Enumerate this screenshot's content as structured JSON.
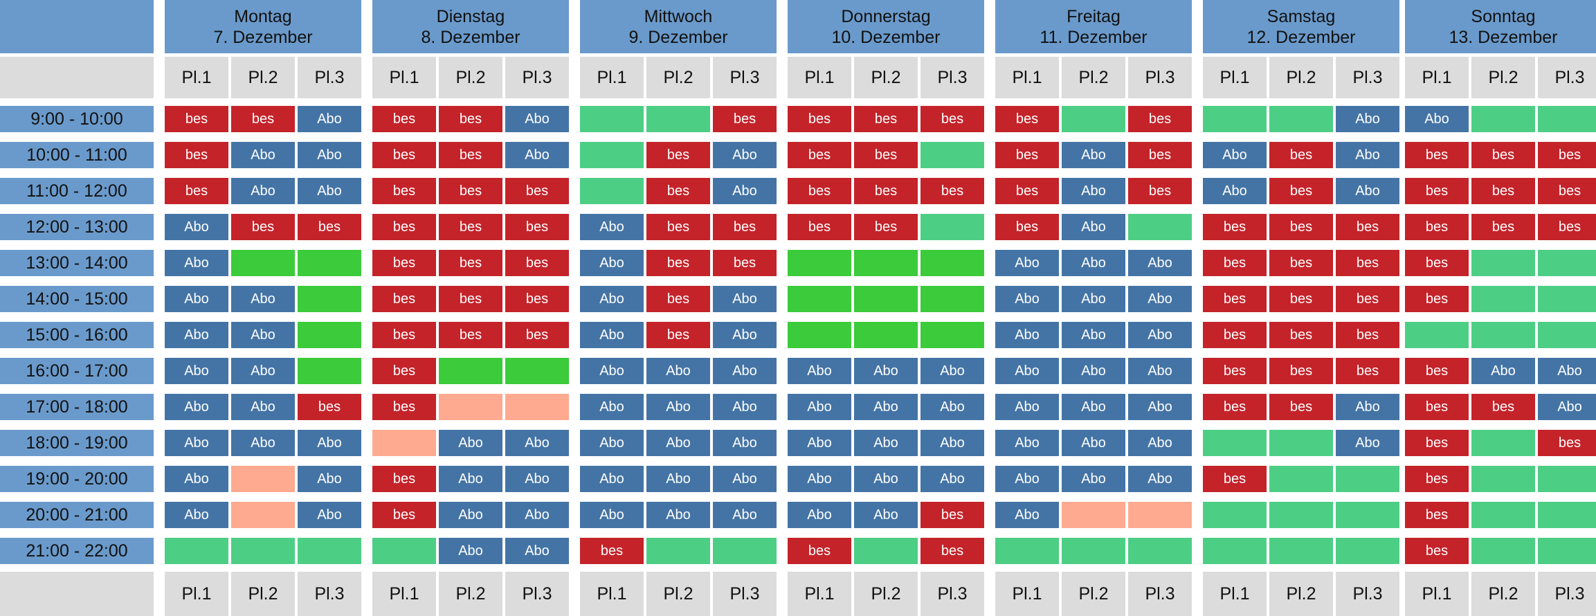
{
  "courts": [
    "Pl.1",
    "Pl.2",
    "Pl.3"
  ],
  "days": [
    {
      "name": "Montag",
      "date": "7. Dezember"
    },
    {
      "name": "Dienstag",
      "date": "8. Dezember"
    },
    {
      "name": "Mittwoch",
      "date": "9. Dezember"
    },
    {
      "name": "Donnerstag",
      "date": "10. Dezember"
    },
    {
      "name": "Freitag",
      "date": "11. Dezember"
    },
    {
      "name": "Samstag",
      "date": "12. Dezember"
    },
    {
      "name": "Sonntag",
      "date": "13. Dezember"
    }
  ],
  "times": [
    "9:00 - 10:00",
    "10:00 - 11:00",
    "11:00 - 12:00",
    "12:00 - 13:00",
    "13:00 - 14:00",
    "14:00 - 15:00",
    "15:00 - 16:00",
    "16:00 - 17:00",
    "17:00 - 18:00",
    "18:00 - 19:00",
    "19:00 - 20:00",
    "20:00 - 21:00",
    "21:00 - 22:00"
  ],
  "status_labels": {
    "bes": "bes",
    "abo": "Abo",
    "frei": "",
    "frei2": "",
    "res": ""
  },
  "colors": {
    "bes": "#c4232a",
    "abo": "#4474a5",
    "frei": "#4dce85",
    "frei2": "#3bcb3b",
    "res": "#fdaa90",
    "header": "#6a9acb",
    "court_header": "#dcdcdc"
  },
  "slots": [
    [
      [
        "bes",
        "bes",
        "abo"
      ],
      [
        "bes",
        "bes",
        "abo"
      ],
      [
        "frei",
        "frei",
        "bes"
      ],
      [
        "bes",
        "bes",
        "bes"
      ],
      [
        "bes",
        "frei",
        "bes"
      ],
      [
        "frei",
        "frei",
        "abo"
      ],
      [
        "abo",
        "frei",
        "frei"
      ]
    ],
    [
      [
        "bes",
        "abo",
        "abo"
      ],
      [
        "bes",
        "bes",
        "abo"
      ],
      [
        "frei",
        "bes",
        "abo"
      ],
      [
        "bes",
        "bes",
        "frei"
      ],
      [
        "bes",
        "abo",
        "bes"
      ],
      [
        "abo",
        "bes",
        "abo"
      ],
      [
        "bes",
        "bes",
        "bes"
      ]
    ],
    [
      [
        "bes",
        "abo",
        "abo"
      ],
      [
        "bes",
        "bes",
        "bes"
      ],
      [
        "frei",
        "bes",
        "abo"
      ],
      [
        "bes",
        "bes",
        "bes"
      ],
      [
        "bes",
        "abo",
        "bes"
      ],
      [
        "abo",
        "bes",
        "abo"
      ],
      [
        "bes",
        "bes",
        "bes"
      ]
    ],
    [
      [
        "abo",
        "bes",
        "bes"
      ],
      [
        "bes",
        "bes",
        "bes"
      ],
      [
        "abo",
        "bes",
        "bes"
      ],
      [
        "bes",
        "bes",
        "frei"
      ],
      [
        "bes",
        "abo",
        "frei"
      ],
      [
        "bes",
        "bes",
        "bes"
      ],
      [
        "bes",
        "bes",
        "bes"
      ]
    ],
    [
      [
        "abo",
        "frei2",
        "frei2"
      ],
      [
        "bes",
        "bes",
        "bes"
      ],
      [
        "abo",
        "bes",
        "bes"
      ],
      [
        "frei2",
        "frei2",
        "frei2"
      ],
      [
        "abo",
        "abo",
        "abo"
      ],
      [
        "bes",
        "bes",
        "bes"
      ],
      [
        "bes",
        "frei",
        "frei"
      ]
    ],
    [
      [
        "abo",
        "abo",
        "frei2"
      ],
      [
        "bes",
        "bes",
        "bes"
      ],
      [
        "abo",
        "bes",
        "abo"
      ],
      [
        "frei2",
        "frei2",
        "frei2"
      ],
      [
        "abo",
        "abo",
        "abo"
      ],
      [
        "bes",
        "bes",
        "bes"
      ],
      [
        "bes",
        "frei",
        "frei"
      ]
    ],
    [
      [
        "abo",
        "abo",
        "frei2"
      ],
      [
        "bes",
        "bes",
        "bes"
      ],
      [
        "abo",
        "bes",
        "abo"
      ],
      [
        "frei2",
        "frei2",
        "frei2"
      ],
      [
        "abo",
        "abo",
        "abo"
      ],
      [
        "bes",
        "bes",
        "bes"
      ],
      [
        "frei",
        "frei",
        "frei"
      ]
    ],
    [
      [
        "abo",
        "abo",
        "frei2"
      ],
      [
        "bes",
        "frei2",
        "frei2"
      ],
      [
        "abo",
        "abo",
        "abo"
      ],
      [
        "abo",
        "abo",
        "abo"
      ],
      [
        "abo",
        "abo",
        "abo"
      ],
      [
        "bes",
        "bes",
        "bes"
      ],
      [
        "bes",
        "abo",
        "abo"
      ]
    ],
    [
      [
        "abo",
        "abo",
        "bes"
      ],
      [
        "bes",
        "res",
        "res"
      ],
      [
        "abo",
        "abo",
        "abo"
      ],
      [
        "abo",
        "abo",
        "abo"
      ],
      [
        "abo",
        "abo",
        "abo"
      ],
      [
        "bes",
        "bes",
        "abo"
      ],
      [
        "bes",
        "bes",
        "abo"
      ]
    ],
    [
      [
        "abo",
        "abo",
        "abo"
      ],
      [
        "res",
        "abo",
        "abo"
      ],
      [
        "abo",
        "abo",
        "abo"
      ],
      [
        "abo",
        "abo",
        "abo"
      ],
      [
        "abo",
        "abo",
        "abo"
      ],
      [
        "frei",
        "frei",
        "abo"
      ],
      [
        "bes",
        "frei",
        "bes"
      ]
    ],
    [
      [
        "abo",
        "res",
        "abo"
      ],
      [
        "bes",
        "abo",
        "abo"
      ],
      [
        "abo",
        "abo",
        "abo"
      ],
      [
        "abo",
        "abo",
        "abo"
      ],
      [
        "abo",
        "abo",
        "abo"
      ],
      [
        "bes",
        "frei",
        "frei"
      ],
      [
        "bes",
        "frei",
        "frei"
      ]
    ],
    [
      [
        "abo",
        "res",
        "abo"
      ],
      [
        "bes",
        "abo",
        "abo"
      ],
      [
        "abo",
        "abo",
        "abo"
      ],
      [
        "abo",
        "abo",
        "bes"
      ],
      [
        "abo",
        "res",
        "res"
      ],
      [
        "frei",
        "frei",
        "frei"
      ],
      [
        "bes",
        "frei",
        "frei"
      ]
    ],
    [
      [
        "frei",
        "frei",
        "frei"
      ],
      [
        "frei",
        "abo",
        "abo"
      ],
      [
        "bes",
        "frei",
        "frei"
      ],
      [
        "bes",
        "frei",
        "bes"
      ],
      [
        "frei",
        "frei",
        "frei"
      ],
      [
        "frei",
        "frei",
        "frei"
      ],
      [
        "bes",
        "frei",
        "frei"
      ]
    ]
  ]
}
